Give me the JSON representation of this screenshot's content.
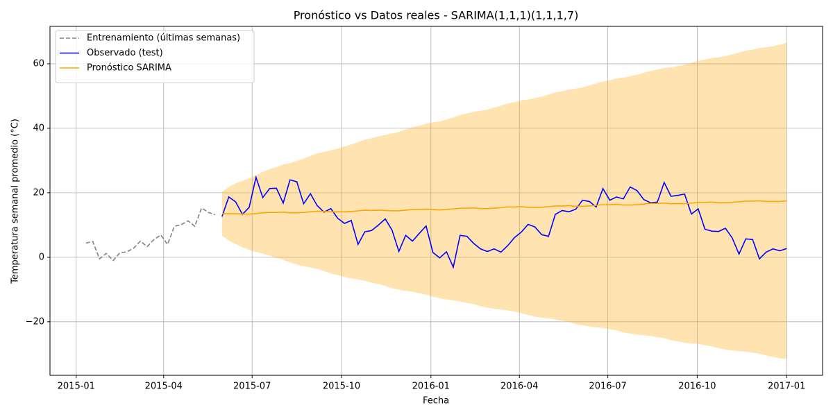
{
  "chart_data": {
    "type": "line",
    "title": "Pronóstico vs Datos reales - SARIMA(1,1,1)(1,1,1,7)",
    "x_label": "Fecha",
    "y_label": "Temperatura semanal promedio (°C)",
    "xlim": [
      "2014-12-05",
      "2017-02-07"
    ],
    "ylim": [
      -36.6,
      71.6
    ],
    "xticks": [
      {
        "value": "2015-01-01",
        "label": "2015-01"
      },
      {
        "value": "2015-04-01",
        "label": "2015-04"
      },
      {
        "value": "2015-07-01",
        "label": "2015-07"
      },
      {
        "value": "2015-10-01",
        "label": "2015-10"
      },
      {
        "value": "2016-01-01",
        "label": "2016-01"
      },
      {
        "value": "2016-04-01",
        "label": "2016-04"
      },
      {
        "value": "2016-07-01",
        "label": "2016-07"
      },
      {
        "value": "2016-10-01",
        "label": "2016-10"
      },
      {
        "value": "2017-01-01",
        "label": "2017-01"
      }
    ],
    "yticks": [
      {
        "value": -20,
        "label": "−20"
      },
      0,
      20,
      40,
      60
    ],
    "grid": true,
    "legend": "upper left",
    "x": [
      "2015-05-31",
      "2015-06-07",
      "2015-06-14",
      "2015-06-21",
      "2015-06-28",
      "2015-07-05",
      "2015-07-12",
      "2015-07-19",
      "2015-07-26",
      "2015-08-02",
      "2015-08-09",
      "2015-08-16",
      "2015-08-23",
      "2015-08-30",
      "2015-09-06",
      "2015-09-13",
      "2015-09-20",
      "2015-09-27",
      "2015-10-04",
      "2015-10-11",
      "2015-10-18",
      "2015-10-25",
      "2015-11-01",
      "2015-11-08",
      "2015-11-15",
      "2015-11-22",
      "2015-11-29",
      "2015-12-06",
      "2015-12-13",
      "2015-12-20",
      "2015-12-27",
      "2016-01-03",
      "2016-01-10",
      "2016-01-17",
      "2016-01-24",
      "2016-01-31",
      "2016-02-07",
      "2016-02-14",
      "2016-02-21",
      "2016-02-28",
      "2016-03-06",
      "2016-03-13",
      "2016-03-20",
      "2016-03-27",
      "2016-04-03",
      "2016-04-10",
      "2016-04-17",
      "2016-04-24",
      "2016-05-01",
      "2016-05-08",
      "2016-05-15",
      "2016-05-22",
      "2016-05-29",
      "2016-06-05",
      "2016-06-12",
      "2016-06-19",
      "2016-06-26",
      "2016-07-03",
      "2016-07-10",
      "2016-07-17",
      "2016-07-24",
      "2016-07-31",
      "2016-08-07",
      "2016-08-14",
      "2016-08-21",
      "2016-08-28",
      "2016-09-04",
      "2016-09-11",
      "2016-09-18",
      "2016-09-25",
      "2016-10-02",
      "2016-10-09",
      "2016-10-16",
      "2016-10-23",
      "2016-10-30",
      "2016-11-06",
      "2016-11-13",
      "2016-11-20",
      "2016-11-27",
      "2016-12-04",
      "2016-12-11",
      "2016-12-18",
      "2016-12-25",
      "2017-01-01"
    ],
    "band": {
      "color": "#ffa500",
      "opacity": 0.3,
      "upper": [
        20.3,
        21.8,
        22.9,
        23.7,
        24.5,
        25.4,
        26.5,
        27.3,
        28.0,
        28.8,
        29.2,
        29.9,
        30.6,
        31.4,
        32.2,
        32.7,
        33.2,
        33.7,
        34.3,
        35.0,
        35.7,
        36.5,
        36.9,
        37.5,
        37.9,
        38.4,
        38.9,
        39.6,
        40.3,
        40.8,
        41.4,
        41.8,
        42.1,
        42.7,
        43.4,
        44.1,
        44.6,
        45.1,
        45.4,
        45.8,
        46.4,
        47.0,
        47.7,
        48.1,
        48.7,
        48.9,
        49.4,
        49.8,
        50.4,
        51.1,
        51.5,
        52.0,
        52.3,
        52.7,
        53.3,
        53.9,
        54.5,
        54.9,
        55.5,
        55.7,
        56.1,
        56.6,
        57.2,
        57.8,
        58.2,
        58.7,
        58.9,
        59.3,
        59.7,
        60.3,
        60.9,
        61.3,
        61.8,
        62.0,
        62.4,
        62.9,
        63.5,
        64.1,
        64.4,
        64.9,
        65.1,
        65.5,
        65.9,
        66.5
      ],
      "lower": [
        6.7,
        5.2,
        4.1,
        3.1,
        2.3,
        1.6,
        1.1,
        0.5,
        -0.2,
        -0.8,
        -1.6,
        -2.3,
        -2.8,
        -3.2,
        -3.6,
        -4.3,
        -5.0,
        -5.5,
        -6.1,
        -6.6,
        -6.9,
        -7.3,
        -7.9,
        -8.3,
        -8.9,
        -9.6,
        -10.1,
        -10.4,
        -10.7,
        -11.2,
        -11.6,
        -12.2,
        -12.7,
        -13.1,
        -13.4,
        -13.7,
        -14.2,
        -14.5,
        -15.2,
        -15.6,
        -16.0,
        -16.2,
        -16.5,
        -16.9,
        -17.3,
        -17.9,
        -18.4,
        -18.8,
        -19.0,
        -19.3,
        -19.7,
        -20.0,
        -20.7,
        -21.1,
        -21.5,
        -21.7,
        -21.9,
        -22.3,
        -22.7,
        -23.3,
        -23.7,
        -24.0,
        -24.2,
        -24.4,
        -24.8,
        -25.1,
        -25.7,
        -26.1,
        -26.5,
        -26.7,
        -26.9,
        -27.3,
        -27.6,
        -28.2,
        -28.6,
        -28.9,
        -29.1,
        -29.3,
        -29.6,
        -29.9,
        -30.5,
        -30.9,
        -31.3,
        -31.5
      ]
    },
    "series": [
      {
        "name": "Entrenamiento (últimas semanas)",
        "color": "#808080",
        "linestyle": "dashed",
        "x": [
          "2015-01-11",
          "2015-01-18",
          "2015-01-25",
          "2015-02-01",
          "2015-02-08",
          "2015-02-15",
          "2015-02-22",
          "2015-03-01",
          "2015-03-08",
          "2015-03-15",
          "2015-03-22",
          "2015-03-29",
          "2015-04-05",
          "2015-04-12",
          "2015-04-19",
          "2015-04-26",
          "2015-05-03",
          "2015-05-10",
          "2015-05-17",
          "2015-05-24"
        ],
        "values": [
          4.4,
          4.9,
          -0.5,
          1.2,
          -1.0,
          1.4,
          1.7,
          2.8,
          5.0,
          3.3,
          5.5,
          6.9,
          4.0,
          9.6,
          10.1,
          11.3,
          9.6,
          15.3,
          13.9,
          13.2
        ]
      },
      {
        "name": "Observado (test)",
        "color": "#0000ff",
        "linestyle": "solid",
        "values": [
          12.6,
          18.7,
          17.2,
          13.3,
          15.5,
          24.8,
          18.5,
          21.3,
          21.4,
          16.8,
          24.0,
          23.4,
          16.6,
          19.7,
          16.0,
          14.0,
          15.1,
          12.1,
          10.5,
          11.4,
          4.0,
          7.9,
          8.3,
          10.0,
          11.9,
          8.4,
          1.8,
          6.8,
          5.0,
          7.4,
          9.7,
          1.5,
          -0.2,
          1.7,
          -3.1,
          6.8,
          6.5,
          4.3,
          2.6,
          1.8,
          2.6,
          1.6,
          3.6,
          6.1,
          7.8,
          10.2,
          9.4,
          7.0,
          6.5,
          13.3,
          14.5,
          14.1,
          14.9,
          17.7,
          17.3,
          15.6,
          21.3,
          17.7,
          18.7,
          18.1,
          21.8,
          20.7,
          17.9,
          16.9,
          17.1,
          23.2,
          18.9,
          19.2,
          19.6,
          13.4,
          15.0,
          8.7,
          8.1,
          8.0,
          9.0,
          6.0,
          1.0,
          5.7,
          5.5,
          -0.5,
          1.6,
          2.6,
          2.0,
          2.7
        ]
      },
      {
        "name": "Pronóstico SARIMA",
        "color": "#ffa500",
        "linestyle": "solid",
        "values": [
          13.5,
          13.5,
          13.5,
          13.4,
          13.4,
          13.5,
          13.8,
          13.9,
          13.9,
          14.0,
          13.8,
          13.8,
          13.9,
          14.1,
          14.3,
          14.2,
          14.1,
          14.1,
          14.1,
          14.2,
          14.4,
          14.6,
          14.5,
          14.6,
          14.5,
          14.4,
          14.4,
          14.6,
          14.8,
          14.8,
          14.9,
          14.8,
          14.7,
          14.8,
          15.0,
          15.2,
          15.2,
          15.3,
          15.1,
          15.1,
          15.2,
          15.4,
          15.6,
          15.6,
          15.7,
          15.5,
          15.5,
          15.5,
          15.7,
          15.9,
          15.9,
          16.0,
          15.8,
          15.8,
          15.9,
          16.1,
          16.3,
          16.3,
          16.4,
          16.2,
          16.2,
          16.3,
          16.5,
          16.7,
          16.7,
          16.8,
          16.6,
          16.6,
          16.6,
          16.8,
          17.0,
          17.0,
          17.1,
          16.9,
          16.9,
          17.0,
          17.2,
          17.4,
          17.4,
          17.5,
          17.3,
          17.3,
          17.3,
          17.5
        ]
      }
    ]
  }
}
